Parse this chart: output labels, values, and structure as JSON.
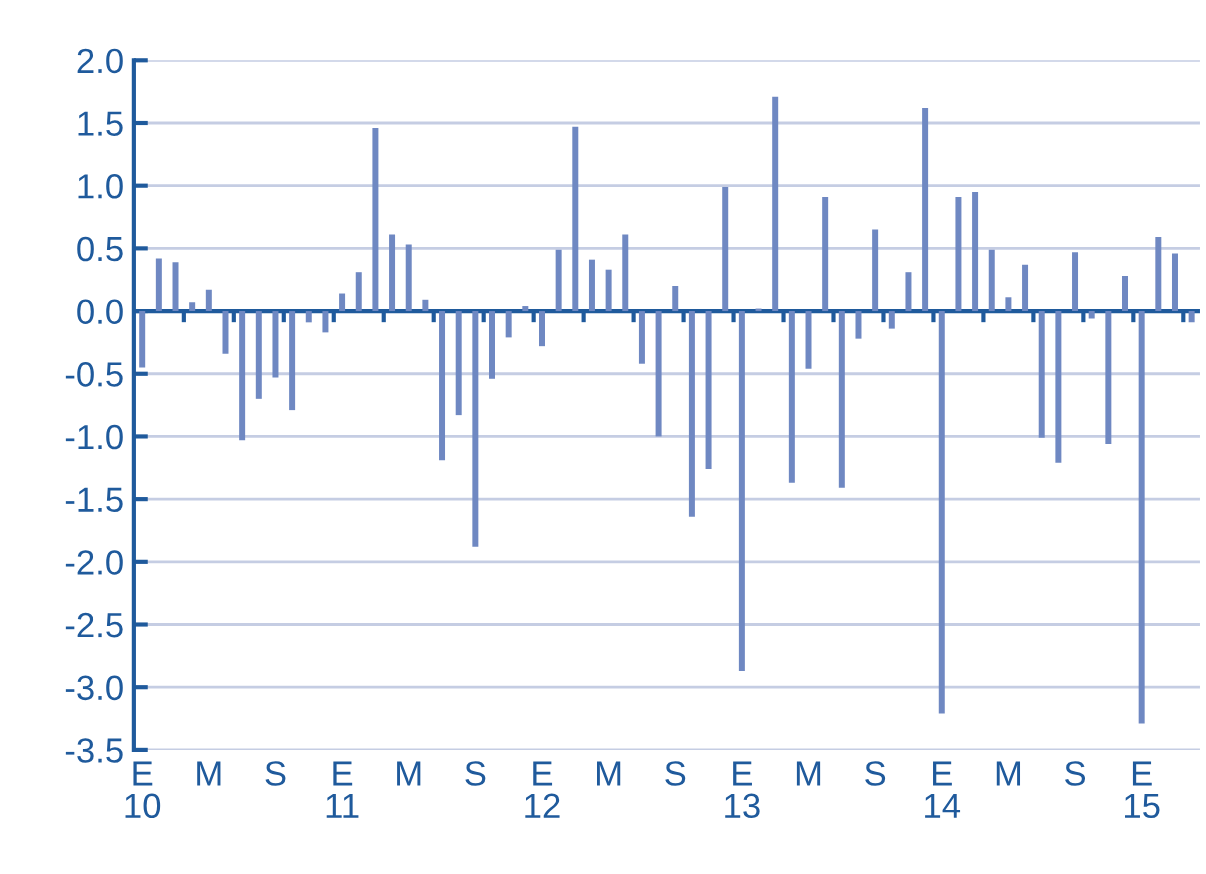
{
  "chart_data": {
    "type": "bar",
    "categories": [
      "E\n10",
      null,
      null,
      null,
      "M",
      null,
      null,
      null,
      "S",
      null,
      null,
      null,
      "E\n11",
      null,
      null,
      null,
      "M",
      null,
      null,
      null,
      "S",
      null,
      null,
      null,
      "E\n12",
      null,
      null,
      null,
      "M",
      null,
      null,
      null,
      "S",
      null,
      null,
      null,
      "E\n13",
      null,
      null,
      null,
      "M",
      null,
      null,
      null,
      "S",
      null,
      null,
      null,
      "E\n14",
      null,
      null,
      null,
      "M",
      null,
      null,
      null,
      "S",
      null,
      null,
      null,
      "E\n15",
      null,
      null,
      null
    ],
    "series": [
      {
        "color": "#6f88c2",
        "values": [
          -0.45,
          0.42,
          0.39,
          0.07,
          0.17,
          -0.34,
          -1.03,
          -0.7,
          -0.53,
          -0.79,
          -0.09,
          -0.17,
          0.14,
          0.31,
          1.46,
          0.61,
          0.53,
          0.09,
          -1.19,
          -0.83,
          -1.88,
          -0.54,
          -0.21,
          0.04,
          -0.28,
          0.49,
          1.47,
          0.41,
          0.33,
          0.61,
          -0.42,
          -1.0,
          0.2,
          -1.64,
          -1.26,
          0.99,
          -2.87,
          0.02,
          1.71,
          -1.37,
          -0.46,
          0.91,
          -1.41,
          -0.22,
          0.65,
          -0.14,
          0.31,
          1.62,
          -3.21,
          0.91,
          0.95,
          0.49,
          0.11,
          0.37,
          -1.01,
          -1.21,
          0.47,
          -0.06,
          -1.06,
          0.28,
          -3.29,
          0.59,
          0.46,
          -0.09
        ]
      }
    ],
    "ylim": [
      -3.5,
      2.0
    ],
    "yticks": [
      {
        "value": -3.5,
        "label": "-3.5"
      },
      {
        "value": -3.0,
        "label": "-3.0"
      },
      {
        "value": -2.5,
        "label": "-2.5"
      },
      {
        "value": -2.0,
        "label": "-2.0"
      },
      {
        "value": -1.5,
        "label": "-1.5"
      },
      {
        "value": -1.0,
        "label": "-1.0"
      },
      {
        "value": -0.5,
        "label": "-0.5"
      },
      {
        "value": 0.0,
        "label": "0.0"
      },
      {
        "value": 0.5,
        "label": "0.5"
      },
      {
        "value": 1.0,
        "label": "1.0"
      },
      {
        "value": 1.5,
        "label": "1.5"
      },
      {
        "value": 2.0,
        "label": "2.0"
      }
    ],
    "ref_lines": [
      {
        "axis": "y",
        "value": 0,
        "color": "#1f5a9c"
      }
    ],
    "grid": "y",
    "legend": false
  }
}
